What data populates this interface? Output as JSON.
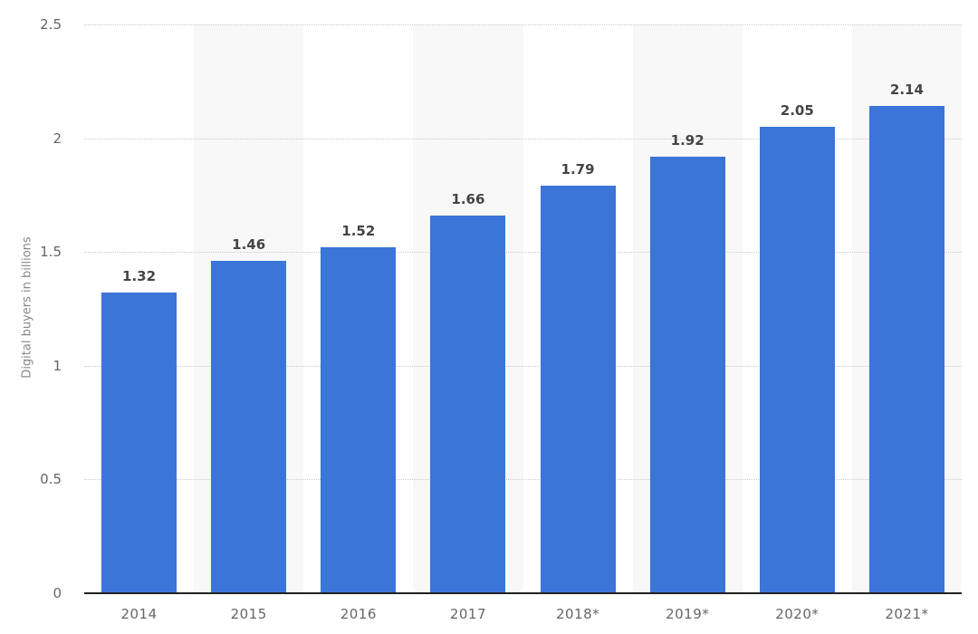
{
  "chart_data": {
    "type": "bar",
    "title": "",
    "xlabel": "",
    "ylabel": "Digital buyers in billions",
    "categories": [
      "2014",
      "2015",
      "2016",
      "2017",
      "2018*",
      "2019*",
      "2020*",
      "2021*"
    ],
    "values": [
      1.32,
      1.46,
      1.52,
      1.66,
      1.79,
      1.92,
      2.05,
      2.14
    ],
    "value_labels": [
      "1.32",
      "1.46",
      "1.52",
      "1.66",
      "1.79",
      "1.92",
      "2.05",
      "2.14"
    ],
    "ylim": [
      0,
      2.5
    ],
    "yticks": [
      0,
      0.5,
      1,
      1.5,
      2,
      2.5
    ],
    "ytick_labels": [
      "0",
      "0.5",
      "1",
      "1.5",
      "2",
      "2.5"
    ],
    "grid": true,
    "legend": "none",
    "colors": {
      "bar": "#3b75d7",
      "band": "#f8f8f8",
      "grid": "#c8c8c8",
      "axis": "#222222"
    }
  }
}
